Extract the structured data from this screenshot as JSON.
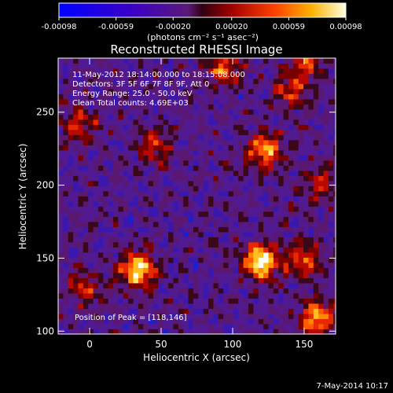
{
  "colorbar": {
    "tick_labels": [
      "-0.00098",
      "-0.00059",
      "-0.00020",
      "0.00020",
      "0.00059",
      "0.00098"
    ],
    "units": "(photons cm⁻² s⁻¹ asec⁻²)",
    "min": -0.00098,
    "max": 0.00098
  },
  "chart_data": {
    "type": "heatmap",
    "title": "Reconstructed RHESSI Image",
    "xlabel": "Heliocentric X (arcsec)",
    "ylabel": "Heliocentric Y (arcsec)",
    "xlim": [
      -22,
      172
    ],
    "ylim": [
      98,
      287
    ],
    "xticks": [
      0,
      50,
      100,
      150
    ],
    "yticks": [
      100,
      150,
      200,
      250
    ],
    "annotations": [
      "11-May-2012 18:14:00.000 to 18:15:08.000",
      "Detectors: 3F 5F 6F 7F 8F 9F, Att 0",
      "Energy Range: 25.0 - 50.0 keV",
      "Clean     Total counts: 4.69E+03"
    ],
    "peak_label": "Position of Peak = [118,146]",
    "peak_position": [
      118,
      146
    ],
    "sources": [
      {
        "x": 118,
        "y": 146,
        "strength": 1.0
      },
      {
        "x": 32,
        "y": 140,
        "strength": 0.95
      },
      {
        "x": 157,
        "y": 108,
        "strength": 0.75
      },
      {
        "x": 120,
        "y": 222,
        "strength": 0.7
      },
      {
        "x": 148,
        "y": 148,
        "strength": 0.55
      },
      {
        "x": 92,
        "y": 278,
        "strength": 0.6
      },
      {
        "x": 150,
        "y": 282,
        "strength": 0.45
      },
      {
        "x": 140,
        "y": 262,
        "strength": 0.45
      },
      {
        "x": 45,
        "y": 225,
        "strength": 0.45
      },
      {
        "x": -8,
        "y": 240,
        "strength": 0.45
      },
      {
        "x": -5,
        "y": 128,
        "strength": 0.4
      },
      {
        "x": 160,
        "y": 200,
        "strength": 0.4
      }
    ]
  },
  "footer": {
    "date": "7-May-2014 10:17"
  }
}
